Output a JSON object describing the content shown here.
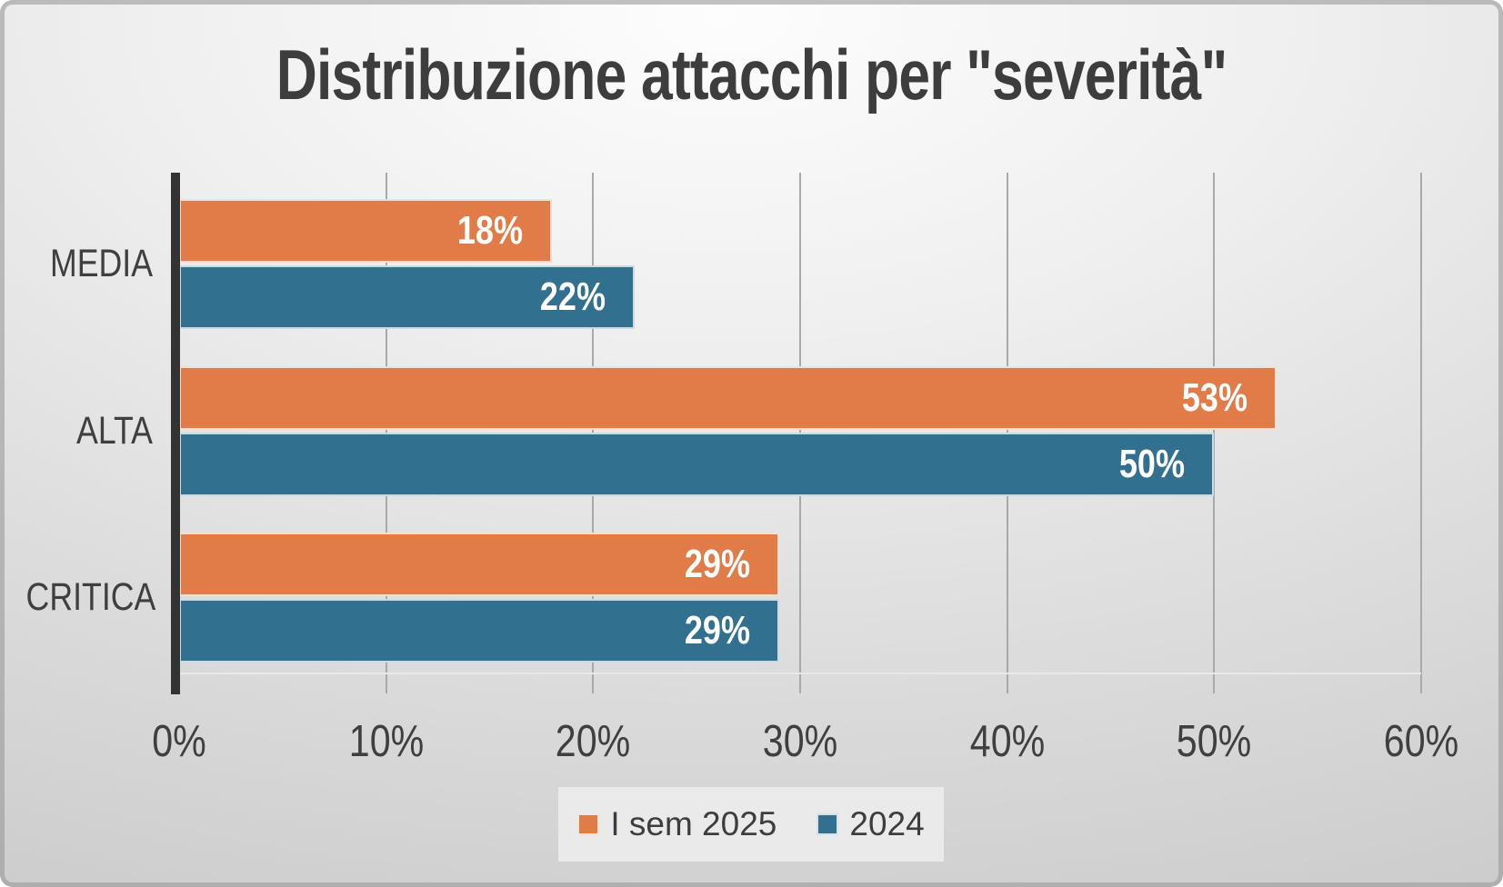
{
  "title": "Distribuzione attacchi per \"severità\"",
  "chart_data": {
    "type": "bar",
    "orientation": "horizontal",
    "title": "Distribuzione attacchi per \"severità\"",
    "categories": [
      "MEDIA",
      "ALTA",
      "CRITICA"
    ],
    "series": [
      {
        "name": "I sem 2025",
        "color": "#E17C49",
        "values": [
          18,
          53,
          29
        ]
      },
      {
        "name": "2024",
        "color": "#31708E",
        "values": [
          22,
          50,
          29
        ]
      }
    ],
    "value_suffix": "%",
    "data_labels": "inside-end",
    "x_ticks": [
      "0%",
      "10%",
      "20%",
      "30%",
      "40%",
      "50%",
      "60%"
    ],
    "x_range": [
      0,
      60
    ],
    "grid": true,
    "legend_position": "bottom"
  },
  "colors": {
    "series_1": "#E17C49",
    "series_2": "#31708E",
    "text": "#3F3F3F",
    "data_label_text": "#FFFFFF",
    "gridline": "#A9A9A9",
    "y_axis": "#333333",
    "legend_background": "#EAEAEA",
    "background_top": "#FDFDFD",
    "background_edge": "#C7C7C7"
  }
}
